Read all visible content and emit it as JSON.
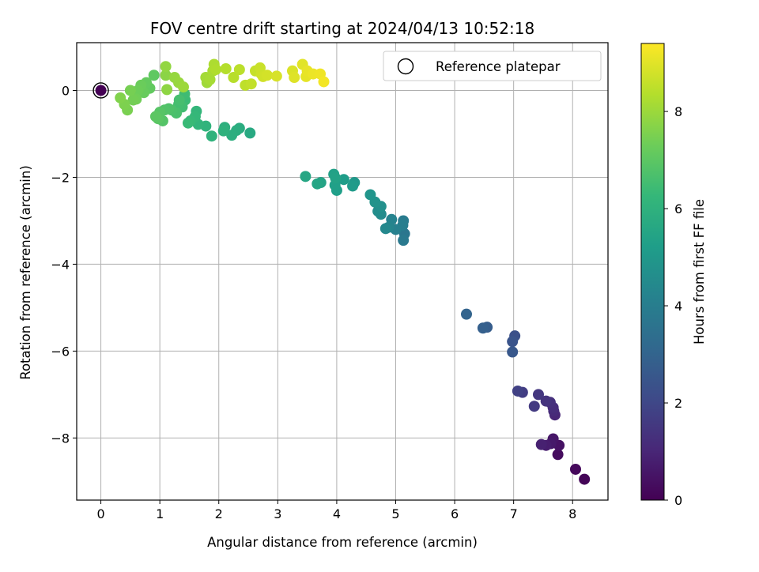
{
  "chart_data": {
    "type": "scatter",
    "title": "FOV centre drift starting at 2024/04/13 10:52:18",
    "xlabel": "Angular distance from reference (arcmin)",
    "ylabel": "Rotation from reference (arcmin)",
    "xlim": [
      -0.41,
      8.6
    ],
    "ylim": [
      -9.43,
      1.1
    ],
    "xticks": [
      "0",
      "1",
      "2",
      "3",
      "4",
      "5",
      "6",
      "7",
      "8"
    ],
    "yticks": [
      "0",
      "−2",
      "−4",
      "−6",
      "−8"
    ],
    "grid": true,
    "legend": {
      "placement": "top-right",
      "entries": [
        "Reference platepar"
      ]
    },
    "colorbar": {
      "label": "Hours from first FF file",
      "range": [
        0,
        9.4
      ],
      "ticks": [
        "0",
        "2",
        "4",
        "6",
        "8"
      ],
      "colormap": "viridis"
    },
    "reference_point": {
      "x": 0,
      "y": 0
    },
    "series": [
      {
        "points": [
          [
            0,
            0,
            0
          ],
          [
            8.2,
            -8.95,
            0.1
          ],
          [
            8.05,
            -8.72,
            0.2
          ],
          [
            7.75,
            -8.38,
            0.3
          ],
          [
            7.77,
            -8.17,
            0.45
          ],
          [
            7.67,
            -8.02,
            0.55
          ],
          [
            7.63,
            -8.13,
            0.65
          ],
          [
            7.55,
            -8.17,
            0.75
          ],
          [
            7.47,
            -8.15,
            0.85
          ],
          [
            7.7,
            -7.47,
            1.0
          ],
          [
            7.68,
            -7.38,
            1.1
          ],
          [
            7.67,
            -7.3,
            1.2
          ],
          [
            7.62,
            -7.18,
            1.3
          ],
          [
            7.55,
            -7.15,
            1.4
          ],
          [
            7.42,
            -7.0,
            1.5
          ],
          [
            7.35,
            -7.27,
            1.6
          ],
          [
            7.15,
            -6.95,
            1.7
          ],
          [
            7.07,
            -6.92,
            1.8
          ],
          [
            7.02,
            -5.65,
            2.3
          ],
          [
            6.98,
            -5.78,
            2.45
          ],
          [
            6.98,
            -6.02,
            2.55
          ],
          [
            6.55,
            -5.45,
            2.75
          ],
          [
            6.48,
            -5.47,
            2.85
          ],
          [
            6.2,
            -5.15,
            3.0
          ],
          [
            5.15,
            -3.3,
            3.7
          ],
          [
            5.13,
            -3.45,
            3.8
          ],
          [
            5.13,
            -3.0,
            3.9
          ],
          [
            5.12,
            -3.1,
            4.0
          ],
          [
            5.0,
            -3.2,
            4.1
          ],
          [
            4.93,
            -2.97,
            4.2
          ],
          [
            4.88,
            -3.15,
            4.3
          ],
          [
            4.83,
            -3.18,
            4.4
          ],
          [
            4.75,
            -2.85,
            4.5
          ],
          [
            4.7,
            -2.78,
            4.6
          ],
          [
            4.75,
            -2.67,
            4.7
          ],
          [
            4.65,
            -2.57,
            4.8
          ],
          [
            4.57,
            -2.4,
            4.9
          ],
          [
            4.3,
            -2.12,
            5.0
          ],
          [
            4.27,
            -2.2,
            5.1
          ],
          [
            4.12,
            -2.05,
            5.2
          ],
          [
            4.0,
            -2.3,
            5.25
          ],
          [
            3.97,
            -2.18,
            5.3
          ],
          [
            3.95,
            -1.93,
            5.35
          ],
          [
            3.98,
            -2.02,
            5.4
          ],
          [
            3.73,
            -2.12,
            5.45
          ],
          [
            3.67,
            -2.15,
            5.5
          ],
          [
            3.47,
            -1.98,
            5.55
          ],
          [
            2.53,
            -0.98,
            5.7
          ],
          [
            2.35,
            -0.87,
            5.8
          ],
          [
            2.3,
            -0.92,
            5.85
          ],
          [
            2.22,
            -1.03,
            5.9
          ],
          [
            2.1,
            -0.85,
            5.95
          ],
          [
            2.08,
            -0.93,
            6.0
          ],
          [
            1.88,
            -1.05,
            6.05
          ],
          [
            1.78,
            -0.82,
            6.1
          ],
          [
            1.65,
            -0.78,
            6.15
          ],
          [
            1.62,
            -0.48,
            6.2
          ],
          [
            1.6,
            -0.6,
            6.25
          ],
          [
            1.52,
            -0.7,
            6.3
          ],
          [
            1.48,
            -0.75,
            6.35
          ],
          [
            1.43,
            -0.22,
            6.4
          ],
          [
            1.42,
            -0.08,
            6.45
          ],
          [
            1.38,
            -0.38,
            6.5
          ],
          [
            1.32,
            -0.32,
            6.55
          ],
          [
            1.33,
            -0.22,
            6.6
          ],
          [
            1.28,
            -0.52,
            6.65
          ],
          [
            1.2,
            -0.45,
            6.7
          ],
          [
            1.15,
            -0.42,
            6.75
          ],
          [
            1.08,
            -0.45,
            6.8
          ],
          [
            1.05,
            -0.7,
            6.85
          ],
          [
            1.0,
            -0.5,
            6.9
          ],
          [
            0.97,
            -0.65,
            6.95
          ],
          [
            0.93,
            -0.6,
            7.0
          ],
          [
            0.9,
            0.35,
            7.05
          ],
          [
            0.83,
            0.05,
            7.1
          ],
          [
            0.77,
            0.18,
            7.15
          ],
          [
            0.73,
            -0.05,
            7.2
          ],
          [
            0.68,
            0.12,
            7.25
          ],
          [
            0.63,
            0.0,
            7.3
          ],
          [
            0.6,
            -0.2,
            7.35
          ],
          [
            0.55,
            -0.22,
            7.4
          ],
          [
            0.5,
            0.0,
            7.45
          ],
          [
            0.45,
            -0.45,
            7.5
          ],
          [
            0.4,
            -0.32,
            7.55
          ],
          [
            0.33,
            -0.17,
            7.6
          ],
          [
            1.1,
            0.35,
            7.75
          ],
          [
            1.12,
            0.02,
            7.8
          ],
          [
            1.1,
            0.55,
            7.85
          ],
          [
            1.25,
            0.3,
            7.9
          ],
          [
            1.32,
            0.18,
            7.95
          ],
          [
            1.4,
            0.08,
            8.0
          ],
          [
            1.8,
            0.18,
            8.05
          ],
          [
            1.78,
            0.3,
            8.1
          ],
          [
            1.85,
            0.25,
            8.15
          ],
          [
            1.9,
            0.45,
            8.2
          ],
          [
            1.92,
            0.6,
            8.25
          ],
          [
            1.95,
            0.48,
            8.3
          ],
          [
            2.12,
            0.5,
            8.35
          ],
          [
            2.25,
            0.3,
            8.4
          ],
          [
            2.35,
            0.48,
            8.45
          ],
          [
            2.45,
            0.12,
            8.5
          ],
          [
            2.55,
            0.15,
            8.55
          ],
          [
            2.62,
            0.45,
            8.6
          ],
          [
            2.7,
            0.52,
            8.65
          ],
          [
            2.72,
            0.38,
            8.7
          ],
          [
            2.75,
            0.32,
            8.75
          ],
          [
            2.82,
            0.35,
            8.8
          ],
          [
            2.98,
            0.33,
            8.85
          ],
          [
            3.25,
            0.45,
            8.9
          ],
          [
            3.28,
            0.3,
            8.95
          ],
          [
            3.42,
            0.6,
            9.0
          ],
          [
            3.48,
            0.32,
            9.05
          ],
          [
            3.5,
            0.45,
            9.1
          ],
          [
            3.6,
            0.38,
            9.15
          ],
          [
            3.72,
            0.38,
            9.2
          ],
          [
            3.78,
            0.2,
            9.25
          ]
        ]
      }
    ]
  }
}
